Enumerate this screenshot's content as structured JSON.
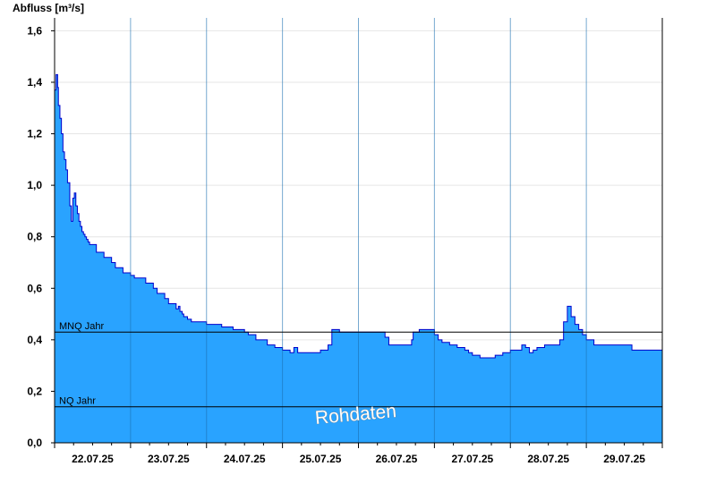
{
  "chart_data": {
    "type": "area",
    "ylabel": "Abfluss [m³/s]",
    "ylim": [
      0,
      1.65
    ],
    "yticks": [
      0,
      0.2,
      0.4,
      0.6,
      0.8,
      1.0,
      1.2,
      1.4,
      1.6
    ],
    "yticklabels": [
      "0,0",
      "0,2",
      "0,4",
      "0,6",
      "0,8",
      "1,0",
      "1,2",
      "1,4",
      "1,6"
    ],
    "xlim": [
      0,
      8
    ],
    "day_labels": [
      "22.07.25",
      "23.07.25",
      "24.07.25",
      "25.07.25",
      "26.07.25",
      "27.07.25",
      "28.07.25",
      "29.07.25"
    ],
    "grid": true,
    "fill_color": "#29a3ff",
    "line_color": "#0000cc",
    "reference_lines": [
      {
        "label": "MNQ Jahr",
        "value": 0.43
      },
      {
        "label": "NQ Jahr",
        "value": 0.14
      }
    ],
    "watermark": "Rohdaten",
    "series": [
      {
        "x": [
          0.0,
          0.02,
          0.04,
          0.05,
          0.07,
          0.09,
          0.11,
          0.13,
          0.15,
          0.17,
          0.2,
          0.22,
          0.24,
          0.26,
          0.28,
          0.3,
          0.32,
          0.34,
          0.36,
          0.38,
          0.4,
          0.42,
          0.44,
          0.46,
          0.5,
          0.55,
          0.65,
          0.75,
          0.8,
          0.9,
          1.0,
          1.05,
          1.2,
          1.3,
          1.35,
          1.45,
          1.5,
          1.6,
          1.63,
          1.65,
          1.68,
          1.7,
          1.75,
          1.8,
          1.85,
          2.0,
          2.2,
          2.35,
          2.5,
          2.55,
          2.65,
          2.8,
          2.9,
          3.0,
          3.1,
          3.15,
          3.2,
          3.25,
          3.35,
          3.5,
          3.6,
          3.65,
          3.7,
          3.75,
          3.8,
          4.0,
          4.2,
          4.3,
          4.35,
          4.4,
          4.6,
          4.7,
          4.72,
          4.8,
          4.9,
          5.0,
          5.05,
          5.1,
          5.2,
          5.3,
          5.4,
          5.45,
          5.5,
          5.6,
          5.7,
          5.8,
          5.9,
          6.0,
          6.1,
          6.15,
          6.2,
          6.25,
          6.3,
          6.35,
          6.45,
          6.55,
          6.65,
          6.7,
          6.75,
          6.8,
          6.85,
          6.9,
          6.95,
          7.0,
          7.1,
          7.3,
          7.5,
          7.6,
          8.0
        ],
        "y": [
          1.37,
          1.43,
          1.38,
          1.31,
          1.26,
          1.2,
          1.13,
          1.1,
          1.06,
          1.01,
          0.92,
          0.86,
          0.95,
          0.97,
          0.92,
          0.89,
          0.86,
          0.84,
          0.82,
          0.81,
          0.8,
          0.79,
          0.78,
          0.77,
          0.77,
          0.74,
          0.72,
          0.7,
          0.68,
          0.66,
          0.65,
          0.64,
          0.62,
          0.6,
          0.58,
          0.56,
          0.54,
          0.52,
          0.53,
          0.51,
          0.5,
          0.49,
          0.48,
          0.47,
          0.47,
          0.46,
          0.45,
          0.44,
          0.43,
          0.42,
          0.4,
          0.38,
          0.37,
          0.36,
          0.35,
          0.37,
          0.35,
          0.35,
          0.35,
          0.36,
          0.38,
          0.44,
          0.44,
          0.43,
          0.43,
          0.43,
          0.43,
          0.43,
          0.41,
          0.38,
          0.38,
          0.4,
          0.43,
          0.44,
          0.44,
          0.42,
          0.4,
          0.39,
          0.38,
          0.37,
          0.36,
          0.35,
          0.34,
          0.33,
          0.33,
          0.34,
          0.35,
          0.36,
          0.36,
          0.38,
          0.37,
          0.35,
          0.36,
          0.37,
          0.38,
          0.38,
          0.4,
          0.47,
          0.53,
          0.49,
          0.46,
          0.44,
          0.42,
          0.4,
          0.38,
          0.38,
          0.38,
          0.36,
          0.36
        ]
      }
    ]
  }
}
